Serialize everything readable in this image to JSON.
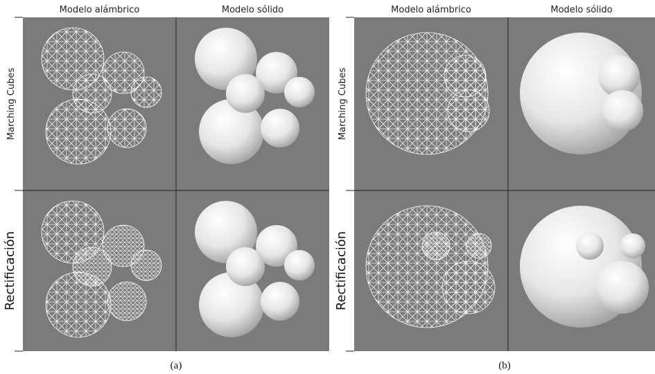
{
  "panels": [
    {
      "columns": [
        "Modelo alámbrico",
        "Modelo sólido"
      ],
      "rows": [
        "Marching Cubes",
        "Rectificación"
      ],
      "caption": "(a)"
    },
    {
      "columns": [
        "Modelo alámbrico",
        "Modelo sólido"
      ],
      "rows": [
        "Marching Cubes",
        "Rectificación"
      ],
      "caption": "(b)"
    }
  ]
}
